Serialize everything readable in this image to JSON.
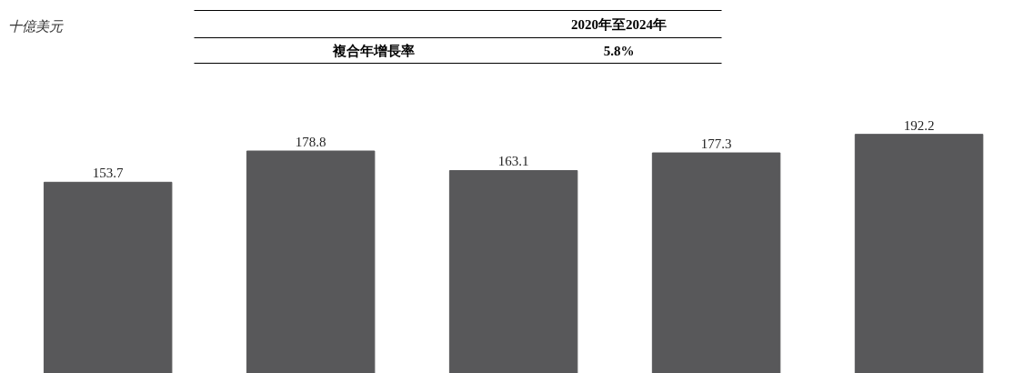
{
  "chart_data": {
    "type": "bar",
    "annotations": [
      "十億美元",
      "2020年至2024年",
      "複合年增長率",
      "5.8%"
    ],
    "categories": [
      null,
      null,
      null,
      null,
      null
    ],
    "values": [
      153.7,
      178.8,
      163.1,
      177.3,
      192.2
    ],
    "color": "#58585a",
    "data_labels": true,
    "grid": false
  }
}
